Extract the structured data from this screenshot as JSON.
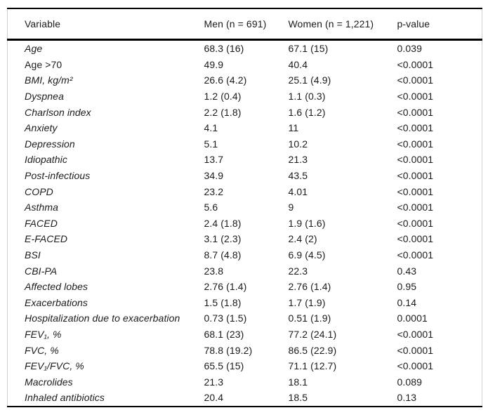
{
  "table": {
    "columns": [
      "Variable",
      "Men (n = 691)",
      "Women (n = 1,221)",
      "p-value"
    ],
    "rows": [
      {
        "variable": "Age",
        "men": "68.3 (16)",
        "women": "67.1 (15)",
        "p": "0.039",
        "italic": true
      },
      {
        "variable": "Age >70",
        "men": "49.9",
        "women": "40.4",
        "p": "<0.0001",
        "italic": false
      },
      {
        "variable": "BMI, kg/m²",
        "men": "26.6 (4.2)",
        "women": "25.1 (4.9)",
        "p": "<0.0001",
        "italic": true
      },
      {
        "variable": "Dyspnea",
        "men": "1.2 (0.4)",
        "women": "1.1 (0.3)",
        "p": "<0.0001",
        "italic": true
      },
      {
        "variable": "Charlson index",
        "men": "2.2 (1.8)",
        "women": "1.6 (1.2)",
        "p": "<0.0001",
        "italic": true
      },
      {
        "variable": "Anxiety",
        "men": "4.1",
        "women": "11",
        "p": "<0.0001",
        "italic": true
      },
      {
        "variable": "Depression",
        "men": "5.1",
        "women": "10.2",
        "p": "<0.0001",
        "italic": true
      },
      {
        "variable": "Idiopathic",
        "men": "13.7",
        "women": "21.3",
        "p": "<0.0001",
        "italic": true
      },
      {
        "variable": "Post-infectious",
        "men": "34.9",
        "women": "43.5",
        "p": "<0.0001",
        "italic": true
      },
      {
        "variable": "COPD",
        "men": "23.2",
        "women": "4.01",
        "p": "<0.0001",
        "italic": true
      },
      {
        "variable": "Asthma",
        "men": "5.6",
        "women": "9",
        "p": "<0.0001",
        "italic": true
      },
      {
        "variable": "FACED",
        "men": "2.4 (1.8)",
        "women": "1.9 (1.6)",
        "p": "<0.0001",
        "italic": true
      },
      {
        "variable": "E-FACED",
        "men": "3.1 (2.3)",
        "women": "2.4 (2)",
        "p": "<0.0001",
        "italic": true
      },
      {
        "variable": "BSI",
        "men": "8.7 (4.8)",
        "women": "6.9 (4.5)",
        "p": "<0.0001",
        "italic": true
      },
      {
        "variable": "CBI-PA",
        "men": "23.8",
        "women": "22.3",
        "p": "0.43",
        "italic": true
      },
      {
        "variable": "Affected lobes",
        "men": "2.76 (1.4)",
        "women": "2.76 (1.4)",
        "p": "0.95",
        "italic": true
      },
      {
        "variable": "Exacerbations",
        "men": "1.5 (1.8)",
        "women": "1.7 (1.9)",
        "p": "0.14",
        "italic": true
      },
      {
        "variable": "Hospitalization due to exacerbation",
        "men": "0.73 (1.5)",
        "women": "0.51 (1.9)",
        "p": "0.0001",
        "italic": true
      },
      {
        "variable": "FEV₁, %",
        "men": "68.1 (23)",
        "women": "77.2 (24.1)",
        "p": "<0.0001",
        "italic": true
      },
      {
        "variable": "FVC, %",
        "men": "78.8 (19.2)",
        "women": "86.5 (22.9)",
        "p": "<0.0001",
        "italic": true
      },
      {
        "variable": "FEV₁/FVC, %",
        "men": "65.5 (15)",
        "women": "71.1 (12.7)",
        "p": "<0.0001",
        "italic": true
      },
      {
        "variable": "Macrolides",
        "men": "21.3",
        "women": "18.1",
        "p": "0.089",
        "italic": true
      },
      {
        "variable": "Inhaled antibiotics",
        "men": "20.4",
        "women": "18.5",
        "p": "0.13",
        "italic": true
      }
    ]
  }
}
